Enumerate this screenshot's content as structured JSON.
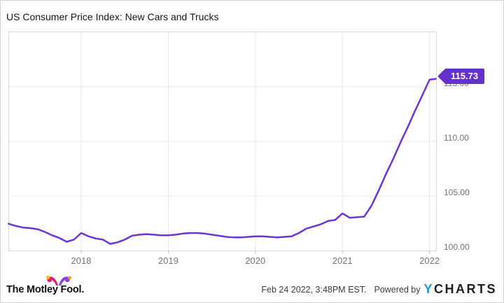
{
  "header": {
    "title": "US Consumer Price Index: New Cars and Trucks"
  },
  "chart_data": {
    "type": "line",
    "title": "US Consumer Price Index: New Cars and Trucks",
    "line_color": "#6D34D6",
    "badge_color": "#6430CE",
    "last_value_label": "115.73",
    "x_tick_labels": [
      "2018",
      "2019",
      "2020",
      "2021",
      "2022"
    ],
    "y_tick_labels": [
      "115.00",
      "110.00",
      "105.00",
      "100.00"
    ],
    "ylim": [
      100,
      120
    ],
    "grid": true,
    "legend": "none",
    "x": [
      "2017-03",
      "2017-04",
      "2017-05",
      "2017-06",
      "2017-07",
      "2017-08",
      "2017-09",
      "2017-10",
      "2017-11",
      "2017-12",
      "2018-01",
      "2018-02",
      "2018-03",
      "2018-04",
      "2018-05",
      "2018-06",
      "2018-07",
      "2018-08",
      "2018-09",
      "2018-10",
      "2018-11",
      "2018-12",
      "2019-01",
      "2019-02",
      "2019-03",
      "2019-04",
      "2019-05",
      "2019-06",
      "2019-07",
      "2019-08",
      "2019-09",
      "2019-10",
      "2019-11",
      "2019-12",
      "2020-01",
      "2020-02",
      "2020-03",
      "2020-04",
      "2020-05",
      "2020-06",
      "2020-07",
      "2020-08",
      "2020-09",
      "2020-10",
      "2020-11",
      "2020-12",
      "2021-01",
      "2021-02",
      "2021-03",
      "2021-04",
      "2021-05",
      "2021-06",
      "2021-07",
      "2021-08",
      "2021-09",
      "2021-10",
      "2021-11",
      "2021-12",
      "2022-01",
      "2022-02"
    ],
    "values": [
      102.45,
      102.25,
      102.1,
      102.05,
      101.95,
      101.7,
      101.4,
      101.15,
      100.8,
      101.0,
      101.6,
      101.3,
      101.1,
      101.0,
      100.6,
      100.75,
      101.0,
      101.35,
      101.45,
      101.5,
      101.45,
      101.4,
      101.4,
      101.45,
      101.55,
      101.6,
      101.6,
      101.55,
      101.45,
      101.35,
      101.25,
      101.2,
      101.2,
      101.25,
      101.3,
      101.3,
      101.25,
      101.2,
      101.25,
      101.3,
      101.6,
      102.0,
      102.2,
      102.4,
      102.7,
      102.8,
      103.4,
      103.0,
      103.05,
      103.1,
      104.1,
      105.5,
      107.0,
      108.4,
      109.9,
      111.3,
      112.8,
      114.2,
      115.65,
      115.73
    ]
  },
  "colors": {
    "grid": "#E8E8E8",
    "plot_border": "#D9D9D9",
    "axis_text": "#757575",
    "title_text": "#161616",
    "mf_pink": "#E51E7B",
    "mf_purple": "#8440D8",
    "mf_bell_yellow": "#FFC20E",
    "mf_bell_orange": "#F7941D",
    "ycharts_blue": "#1E9BD7",
    "ycharts_dark": "#1B2026"
  },
  "footer": {
    "motley_fool": {
      "label": "The Motley Fool."
    },
    "timestamp": "Feb 24 2022, 3:48PM EST.",
    "powered_by": "Powered by",
    "ycharts": {
      "y": "Y",
      "charts": "CHARTS"
    }
  }
}
